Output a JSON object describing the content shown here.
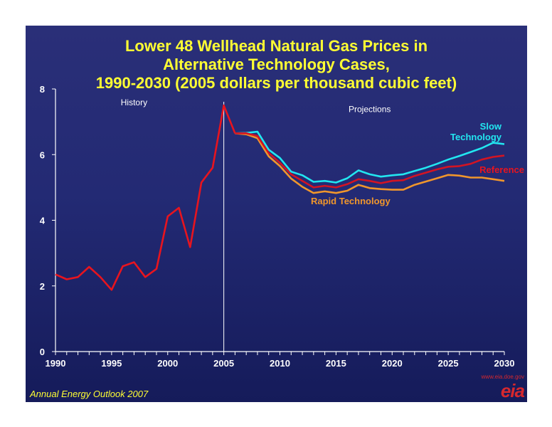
{
  "title_lines": [
    "Lower 48 Wellhead Natural Gas Prices in",
    "Alternative Technology Cases,",
    "1990-2030 (2005 dollars per thousand cubic feet)"
  ],
  "source": "Annual Energy Outlook 2007",
  "logo": {
    "url": "www.eia.doe.gov",
    "text": "eia"
  },
  "colors": {
    "background": "#232a74",
    "title": "#ffff33",
    "axis": "#ffffff",
    "history": "#e8141e",
    "reference": "#d21423",
    "slow": "#22e6f0",
    "rapid": "#f0962c",
    "reference_label": "#e8141e",
    "divider": "#ffffff"
  },
  "chart_data": {
    "type": "line",
    "xlim": [
      1990,
      2030
    ],
    "ylim": [
      0,
      8
    ],
    "x_ticks": [
      1990,
      1995,
      2000,
      2005,
      2010,
      2015,
      2020,
      2025,
      2030
    ],
    "y_ticks": [
      0,
      2,
      4,
      6,
      8
    ],
    "grid": false,
    "divider_x": 2005,
    "region_labels": [
      {
        "text": "History",
        "x": 1997,
        "y": 7.5
      },
      {
        "text": "Projections",
        "x": 2018,
        "y": 7.3
      }
    ],
    "series": [
      {
        "name": "History",
        "color_key": "history",
        "label": "",
        "points": [
          [
            1990,
            2.35
          ],
          [
            1991,
            2.2
          ],
          [
            1992,
            2.27
          ],
          [
            1993,
            2.58
          ],
          [
            1994,
            2.27
          ],
          [
            1995,
            1.88
          ],
          [
            1996,
            2.6
          ],
          [
            1997,
            2.72
          ],
          [
            1998,
            2.27
          ],
          [
            1999,
            2.52
          ],
          [
            2000,
            4.12
          ],
          [
            2001,
            4.38
          ],
          [
            2002,
            3.18
          ],
          [
            2003,
            5.15
          ],
          [
            2004,
            5.6
          ],
          [
            2005,
            7.5
          ],
          [
            2006,
            6.65
          ]
        ]
      },
      {
        "name": "Slow Technology",
        "color_key": "slow",
        "label": [
          "Slow",
          "Technology"
        ],
        "points": [
          [
            2006,
            6.65
          ],
          [
            2007,
            6.66
          ],
          [
            2008,
            6.7
          ],
          [
            2009,
            6.15
          ],
          [
            2010,
            5.9
          ],
          [
            2011,
            5.48
          ],
          [
            2012,
            5.37
          ],
          [
            2013,
            5.17
          ],
          [
            2014,
            5.2
          ],
          [
            2015,
            5.15
          ],
          [
            2016,
            5.28
          ],
          [
            2017,
            5.52
          ],
          [
            2018,
            5.4
          ],
          [
            2019,
            5.33
          ],
          [
            2020,
            5.37
          ],
          [
            2021,
            5.4
          ],
          [
            2022,
            5.5
          ],
          [
            2023,
            5.6
          ],
          [
            2024,
            5.72
          ],
          [
            2025,
            5.85
          ],
          [
            2026,
            5.96
          ],
          [
            2027,
            6.08
          ],
          [
            2028,
            6.2
          ],
          [
            2029,
            6.36
          ],
          [
            2030,
            6.32
          ]
        ]
      },
      {
        "name": "Reference",
        "color_key": "reference",
        "label": [
          "Reference"
        ],
        "points": [
          [
            2006,
            6.65
          ],
          [
            2007,
            6.65
          ],
          [
            2008,
            6.57
          ],
          [
            2009,
            6.05
          ],
          [
            2010,
            5.75
          ],
          [
            2011,
            5.4
          ],
          [
            2012,
            5.2
          ],
          [
            2013,
            5.0
          ],
          [
            2014,
            5.05
          ],
          [
            2015,
            5.0
          ],
          [
            2016,
            5.1
          ],
          [
            2017,
            5.25
          ],
          [
            2018,
            5.2
          ],
          [
            2019,
            5.13
          ],
          [
            2020,
            5.2
          ],
          [
            2021,
            5.22
          ],
          [
            2022,
            5.35
          ],
          [
            2023,
            5.45
          ],
          [
            2024,
            5.55
          ],
          [
            2025,
            5.63
          ],
          [
            2026,
            5.65
          ],
          [
            2027,
            5.72
          ],
          [
            2028,
            5.85
          ],
          [
            2029,
            5.93
          ],
          [
            2030,
            5.97
          ]
        ]
      },
      {
        "name": "Rapid Technology",
        "color_key": "rapid",
        "label": [
          "Rapid Technology"
        ],
        "points": [
          [
            2006,
            6.65
          ],
          [
            2007,
            6.62
          ],
          [
            2008,
            6.5
          ],
          [
            2009,
            5.95
          ],
          [
            2010,
            5.65
          ],
          [
            2011,
            5.27
          ],
          [
            2012,
            5.02
          ],
          [
            2013,
            4.83
          ],
          [
            2014,
            4.88
          ],
          [
            2015,
            4.83
          ],
          [
            2016,
            4.9
          ],
          [
            2017,
            5.08
          ],
          [
            2018,
            4.98
          ],
          [
            2019,
            4.95
          ],
          [
            2020,
            4.93
          ],
          [
            2021,
            4.93
          ],
          [
            2022,
            5.08
          ],
          [
            2023,
            5.18
          ],
          [
            2024,
            5.28
          ],
          [
            2025,
            5.38
          ],
          [
            2026,
            5.36
          ],
          [
            2027,
            5.3
          ],
          [
            2028,
            5.3
          ],
          [
            2029,
            5.25
          ],
          [
            2030,
            5.2
          ]
        ]
      }
    ]
  }
}
